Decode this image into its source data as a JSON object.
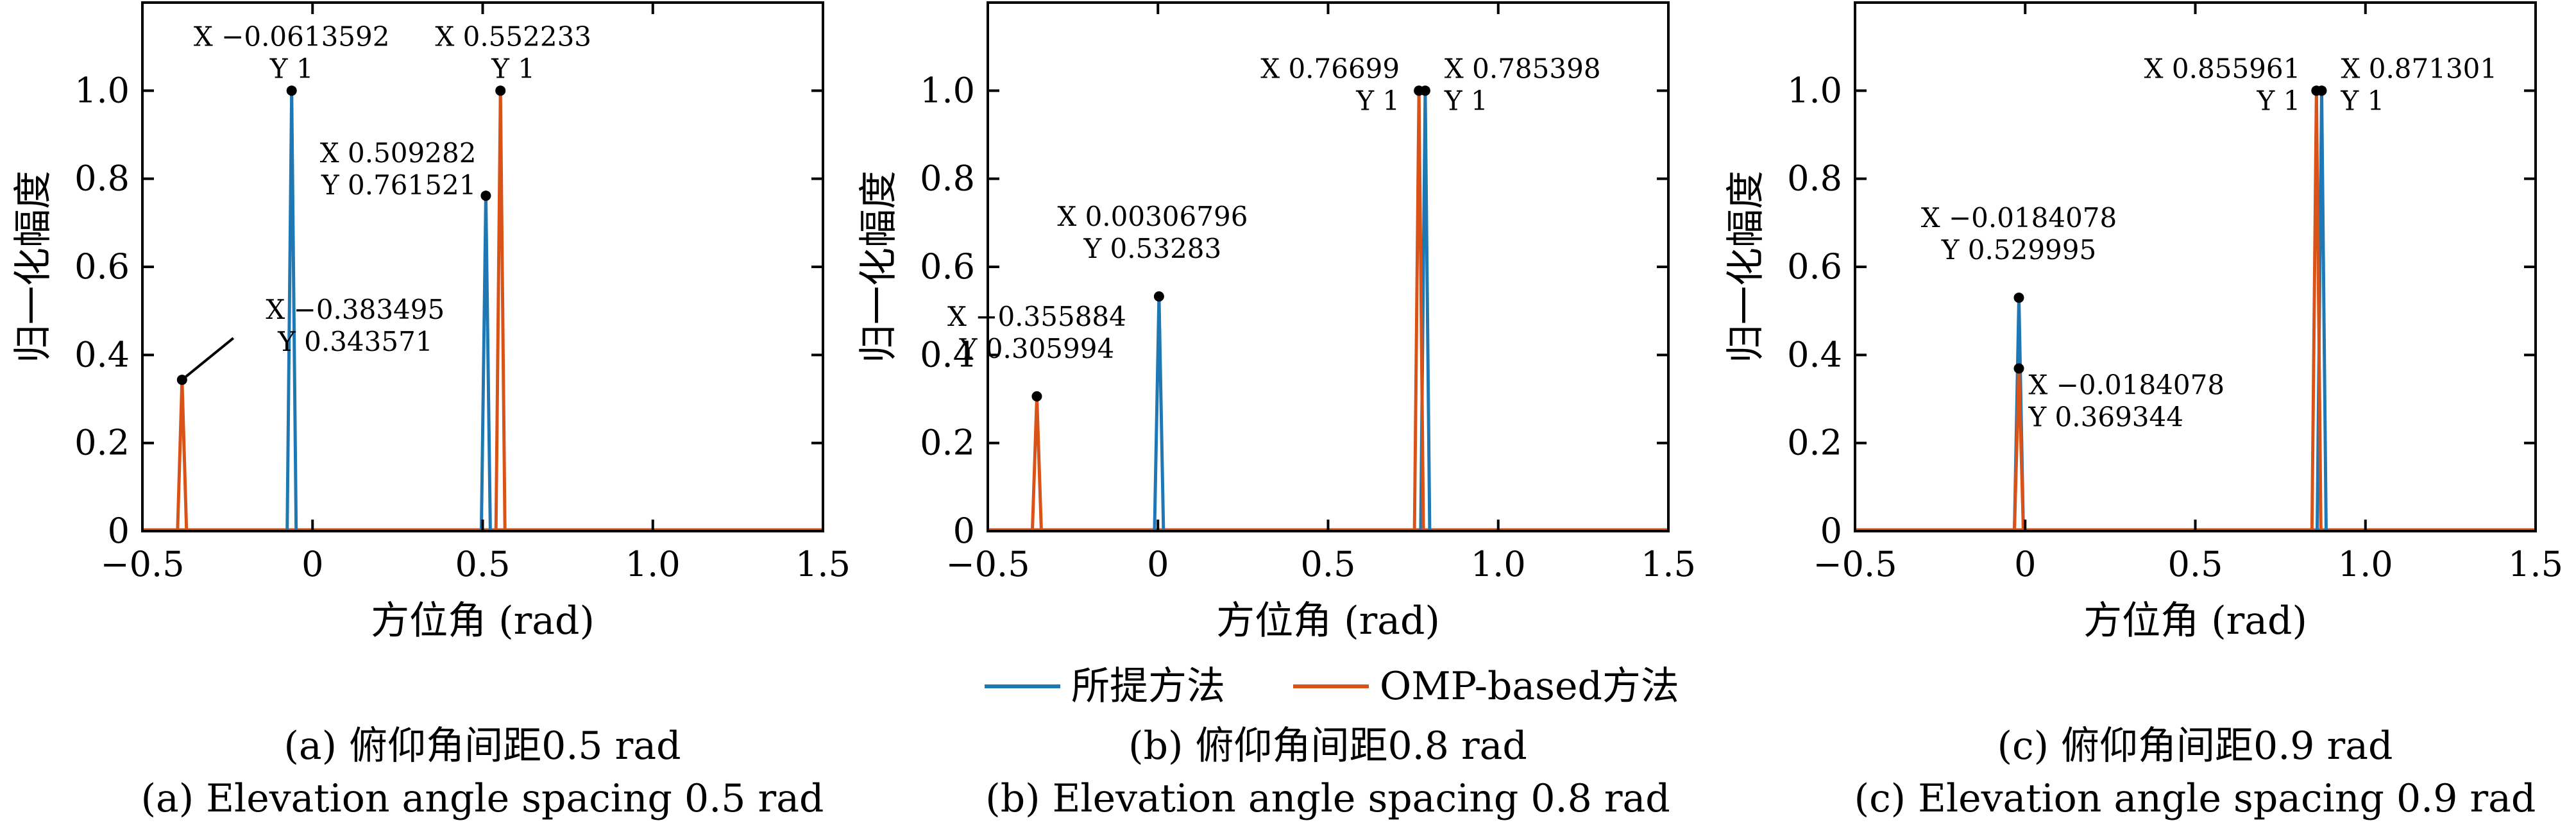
{
  "chart_data": [
    {
      "type": "line",
      "xlabel": "方位角 (rad)",
      "ylabel": "归一化幅度",
      "xlim": [
        -0.5,
        1.5
      ],
      "ylim": [
        0,
        1.2
      ],
      "x_ticks": [
        "−0.5",
        "0",
        "0.5",
        "1.0",
        "1.5"
      ],
      "y_ticks": [
        "0",
        "0.2",
        "0.4",
        "0.6",
        "0.8",
        "1.0"
      ],
      "grid": false,
      "series": [
        {
          "name": "所提方法",
          "color": "#1f77b4",
          "peaks": [
            {
              "x": -0.0613592,
              "y": 1
            },
            {
              "x": 0.509282,
              "y": 0.761521
            }
          ]
        },
        {
          "name": "OMP-based方法",
          "color": "#d95319",
          "peaks": [
            {
              "x": -0.383495,
              "y": 0.343571
            },
            {
              "x": 0.552233,
              "y": 1
            }
          ]
        }
      ],
      "annotations": [
        {
          "x": -0.0613592,
          "y": 1,
          "line1": "X −0.0613592",
          "line2": "Y 1"
        },
        {
          "x": 0.552233,
          "y": 1,
          "line1": "X 0.552233",
          "line2": "Y 1"
        },
        {
          "x": 0.509282,
          "y": 0.761521,
          "line1": "X 0.509282",
          "line2": "Y 0.761521"
        },
        {
          "x": -0.383495,
          "y": 0.343571,
          "line1": "X −0.383495",
          "line2": "Y 0.343571"
        }
      ],
      "caption_cn": "(a) 俯仰角间距0.5 rad",
      "caption_en": "(a) Elevation angle spacing 0.5 rad"
    },
    {
      "type": "line",
      "xlabel": "方位角 (rad)",
      "ylabel": "归一化幅度",
      "xlim": [
        -0.5,
        1.5
      ],
      "ylim": [
        0,
        1.2
      ],
      "x_ticks": [
        "−0.5",
        "0",
        "0.5",
        "1.0",
        "1.5"
      ],
      "y_ticks": [
        "0",
        "0.2",
        "0.4",
        "0.6",
        "0.8",
        "1.0"
      ],
      "grid": false,
      "series": [
        {
          "name": "所提方法",
          "color": "#1f77b4",
          "peaks": [
            {
              "x": 0.00306796,
              "y": 0.53283
            },
            {
              "x": 0.785398,
              "y": 1
            }
          ]
        },
        {
          "name": "OMP-based方法",
          "color": "#d95319",
          "peaks": [
            {
              "x": -0.355884,
              "y": 0.305994
            },
            {
              "x": 0.76699,
              "y": 1
            }
          ]
        }
      ],
      "annotations": [
        {
          "x": 0.76699,
          "y": 1,
          "line1": "X 0.76699",
          "line2": "Y 1"
        },
        {
          "x": 0.785398,
          "y": 1,
          "line1": "X 0.785398",
          "line2": "Y 1"
        },
        {
          "x": 0.00306796,
          "y": 0.53283,
          "line1": "X 0.00306796",
          "line2": "Y 0.53283"
        },
        {
          "x": -0.355884,
          "y": 0.305994,
          "line1": "X −0.355884",
          "line2": "Y 0.305994"
        }
      ],
      "caption_cn": "(b) 俯仰角间距0.8 rad",
      "caption_en": "(b) Elevation angle spacing 0.8 rad"
    },
    {
      "type": "line",
      "xlabel": "方位角 (rad)",
      "ylabel": "归一化幅度",
      "xlim": [
        -0.5,
        1.5
      ],
      "ylim": [
        0,
        1.2
      ],
      "x_ticks": [
        "−0.5",
        "0",
        "0.5",
        "1.0",
        "1.5"
      ],
      "y_ticks": [
        "0",
        "0.2",
        "0.4",
        "0.6",
        "0.8",
        "1.0"
      ],
      "grid": false,
      "series": [
        {
          "name": "所提方法",
          "color": "#1f77b4",
          "peaks": [
            {
              "x": -0.0184078,
              "y": 0.529995
            },
            {
              "x": 0.871301,
              "y": 1
            }
          ]
        },
        {
          "name": "OMP-based方法",
          "color": "#d95319",
          "peaks": [
            {
              "x": -0.0184078,
              "y": 0.369344
            },
            {
              "x": 0.855961,
              "y": 1
            }
          ]
        }
      ],
      "annotations": [
        {
          "x": 0.855961,
          "y": 1,
          "line1": "X 0.855961",
          "line2": "Y 1"
        },
        {
          "x": 0.871301,
          "y": 1,
          "line1": "X 0.871301",
          "line2": "Y 1"
        },
        {
          "x": -0.0184078,
          "y": 0.529995,
          "line1": "X −0.0184078",
          "line2": "Y 0.529995"
        },
        {
          "x": -0.0184078,
          "y": 0.369344,
          "line1": "X −0.0184078",
          "line2": "Y 0.369344"
        }
      ],
      "caption_cn": "(c) 俯仰角间距0.9 rad",
      "caption_en": "(c) Elevation angle spacing 0.9 rad"
    }
  ],
  "legend": {
    "placement": "bottom-center",
    "items": [
      {
        "label": "所提方法",
        "color": "#1f77b4"
      },
      {
        "label": "OMP-based方法",
        "color": "#d95319"
      }
    ]
  }
}
